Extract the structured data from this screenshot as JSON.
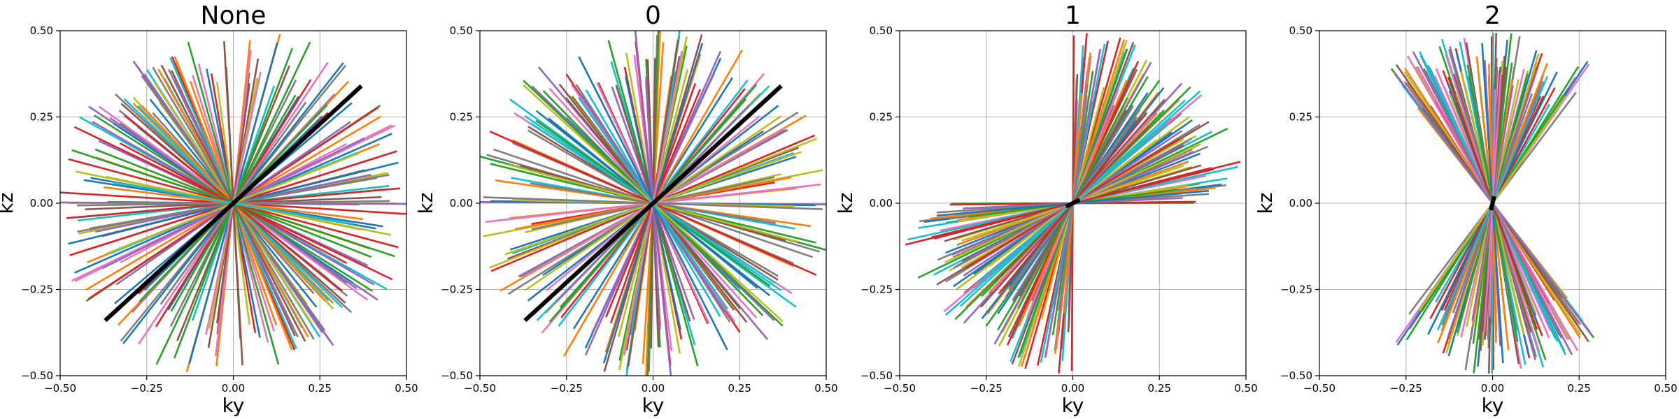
{
  "chart_data": [
    {
      "type": "line",
      "title": "None",
      "xlabel": "ky",
      "ylabel": "kz",
      "xlim": [
        -0.5,
        0.5
      ],
      "ylim": [
        -0.5,
        0.5
      ],
      "xticks": [
        "−0.50",
        "−0.25",
        "0.00",
        "0.25",
        "0.50"
      ],
      "yticks": [
        "−0.50",
        "−0.25",
        "0.00",
        "0.25",
        "0.50"
      ],
      "grid": true,
      "spoke_count": 120,
      "spoke_angle_range_deg": [
        0,
        180
      ],
      "spoke_length_range": [
        0.35,
        0.52
      ],
      "highlight_spoke": {
        "from": [
          -0.37,
          -0.34
        ],
        "to": [
          0.37,
          0.34
        ],
        "color": "#000000"
      }
    },
    {
      "type": "line",
      "title": "0",
      "xlabel": "ky",
      "ylabel": "kz",
      "xlim": [
        -0.5,
        0.5
      ],
      "ylim": [
        -0.5,
        0.5
      ],
      "xticks": [
        "−0.50",
        "−0.25",
        "0.00",
        "0.25",
        "0.50"
      ],
      "yticks": [
        "−0.50",
        "−0.25",
        "0.00",
        "0.25",
        "0.50"
      ],
      "grid": true,
      "spoke_count": 120,
      "spoke_angle_range_deg": [
        0,
        180
      ],
      "spoke_length_range": [
        0.35,
        0.52
      ],
      "highlight_spoke": {
        "from": [
          -0.37,
          -0.34
        ],
        "to": [
          0.37,
          0.34
        ],
        "color": "#000000"
      }
    },
    {
      "type": "line",
      "title": "1",
      "xlabel": "ky",
      "ylabel": "kz",
      "xlim": [
        -0.5,
        0.5
      ],
      "ylim": [
        -0.5,
        0.5
      ],
      "xticks": [
        "−0.50",
        "−0.25",
        "0.00",
        "0.25",
        "0.50"
      ],
      "yticks": [
        "−0.50",
        "−0.25",
        "0.00",
        "0.25",
        "0.50"
      ],
      "grid": true,
      "spoke_count": 120,
      "spoke_angle_range_deg": [
        0,
        90
      ],
      "spoke_length_range": [
        0.3,
        0.5
      ],
      "highlight_spoke": {
        "from": [
          -0.02,
          -0.01
        ],
        "to": [
          0.02,
          0.01
        ],
        "color": "#000000"
      }
    },
    {
      "type": "line",
      "title": "2",
      "xlabel": "ky",
      "ylabel": "kz",
      "xlim": [
        -0.5,
        0.5
      ],
      "ylim": [
        -0.5,
        0.5
      ],
      "xticks": [
        "−0.50",
        "−0.25",
        "0.00",
        "0.25",
        "0.50"
      ],
      "yticks": [
        "−0.50",
        "−0.25",
        "0.00",
        "0.25",
        "0.50"
      ],
      "grid": true,
      "spoke_count": 120,
      "spoke_angle_range_deg": [
        52,
        128
      ],
      "spoke_length_range": [
        0.33,
        0.5
      ],
      "highlight_spoke": {
        "from": [
          -0.005,
          -0.02
        ],
        "to": [
          0.005,
          0.02
        ],
        "color": "#000000"
      }
    }
  ],
  "palette": [
    "#1f77b4",
    "#ff7f0e",
    "#2ca02c",
    "#d62728",
    "#9467bd",
    "#8c564b",
    "#e377c2",
    "#7f7f7f",
    "#bcbd22",
    "#17becf"
  ]
}
